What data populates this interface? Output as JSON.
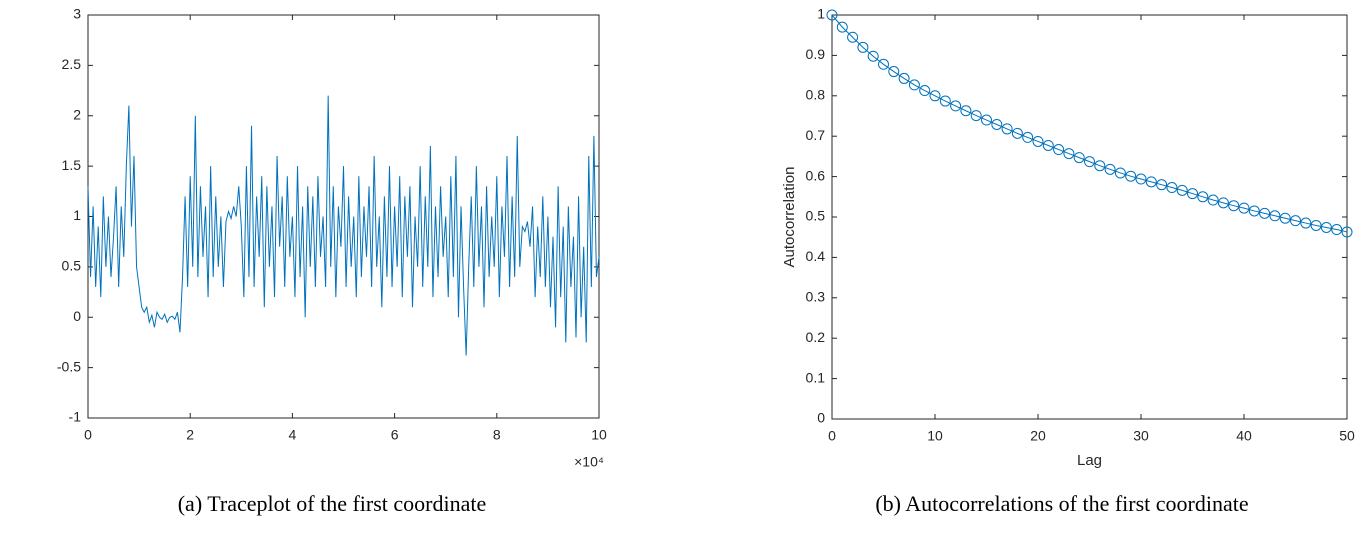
{
  "chart_data": [
    {
      "type": "line",
      "color": "#0072bd",
      "x": [
        0,
        500,
        1000,
        1500,
        2000,
        2500,
        3000,
        3500,
        4000,
        4500,
        5000,
        5500,
        6000,
        6500,
        7000,
        7500,
        8000,
        8500,
        9000,
        9500,
        10000,
        10500,
        11000,
        11500,
        12000,
        12500,
        13000,
        13500,
        14000,
        14500,
        15000,
        15500,
        16000,
        16500,
        17000,
        17500,
        18000,
        18500,
        19000,
        19500,
        20000,
        20500,
        21000,
        21500,
        22000,
        22500,
        23000,
        23500,
        24000,
        24500,
        25000,
        25500,
        26000,
        26500,
        27000,
        27500,
        28000,
        28500,
        29000,
        29500,
        30000,
        30500,
        31000,
        31500,
        32000,
        32500,
        33000,
        33500,
        34000,
        34500,
        35000,
        35500,
        36000,
        36500,
        37000,
        37500,
        38000,
        38500,
        39000,
        39500,
        40000,
        40500,
        41000,
        41500,
        42000,
        42500,
        43000,
        43500,
        44000,
        44500,
        45000,
        45500,
        46000,
        46500,
        47000,
        47500,
        48000,
        48500,
        49000,
        49500,
        50000,
        50500,
        51000,
        51500,
        52000,
        52500,
        53000,
        53500,
        54000,
        54500,
        55000,
        55500,
        56000,
        56500,
        57000,
        57500,
        58000,
        58500,
        59000,
        59500,
        60000,
        60500,
        61000,
        61500,
        62000,
        62500,
        63000,
        63500,
        64000,
        64500,
        65000,
        65500,
        66000,
        66500,
        67000,
        67500,
        68000,
        68500,
        69000,
        69500,
        70000,
        70500,
        71000,
        71500,
        72000,
        72500,
        73000,
        73500,
        74000,
        74500,
        75000,
        75500,
        76000,
        76500,
        77000,
        77500,
        78000,
        78500,
        79000,
        79500,
        80000,
        80500,
        81000,
        81500,
        82000,
        82500,
        83000,
        83500,
        84000,
        84500,
        85000,
        85500,
        86000,
        86500,
        87000,
        87500,
        88000,
        88500,
        89000,
        89500,
        90000,
        90500,
        91000,
        91500,
        92000,
        92500,
        93000,
        93500,
        94000,
        94500,
        95000,
        95500,
        96000,
        96500,
        97000,
        97500,
        98000,
        98500,
        99000,
        99500,
        100000
      ],
      "values": [
        1.3,
        0.4,
        1.1,
        0.3,
        0.9,
        0.2,
        1.2,
        0.5,
        1.0,
        0.4,
        0.8,
        1.3,
        0.3,
        1.1,
        0.6,
        1.5,
        2.1,
        0.9,
        1.6,
        0.5,
        0.3,
        0.1,
        0.05,
        0.1,
        -0.05,
        0.02,
        -0.1,
        0.05,
        0.0,
        -0.02,
        0.03,
        -0.05,
        0.0,
        0.01,
        -0.02,
        0.05,
        -0.15,
        0.4,
        1.2,
        0.3,
        1.4,
        0.5,
        2.0,
        0.4,
        1.3,
        0.6,
        1.1,
        0.2,
        1.5,
        0.4,
        1.2,
        0.5,
        1.0,
        0.3,
        0.95,
        1.05,
        0.98,
        1.1,
        1.0,
        1.3,
        0.9,
        0.2,
        1.5,
        0.4,
        1.9,
        0.3,
        1.2,
        0.6,
        1.4,
        0.1,
        1.3,
        0.5,
        1.1,
        0.2,
        1.6,
        0.7,
        1.2,
        0.3,
        1.4,
        0.6,
        1.0,
        0.2,
        1.5,
        0.4,
        1.1,
        0.0,
        1.3,
        0.5,
        1.2,
        0.3,
        1.4,
        0.6,
        1.0,
        0.3,
        2.2,
        0.5,
        1.3,
        0.2,
        1.1,
        0.7,
        1.5,
        0.3,
        1.2,
        0.5,
        1.0,
        0.2,
        1.4,
        0.4,
        1.1,
        0.6,
        1.3,
        0.3,
        1.6,
        0.5,
        1.0,
        0.1,
        1.2,
        0.4,
        1.5,
        0.3,
        1.1,
        0.5,
        1.4,
        0.2,
        1.2,
        0.6,
        1.3,
        0.1,
        1.0,
        0.5,
        1.5,
        0.3,
        1.2,
        0.5,
        1.7,
        0.2,
        1.1,
        0.4,
        1.3,
        0.6,
        1.0,
        0.2,
        1.4,
        0.4,
        1.6,
        0.0,
        1.1,
        0.3,
        -0.38,
        0.5,
        1.2,
        0.3,
        1.5,
        0.5,
        1.1,
        0.1,
        1.3,
        0.4,
        1.0,
        0.5,
        1.4,
        0.2,
        1.1,
        0.6,
        1.6,
        0.3,
        1.2,
        0.4,
        1.8,
        0.5,
        0.9,
        0.85,
        0.95,
        0.7,
        1.1,
        0.2,
        0.9,
        0.4,
        1.2,
        0.3,
        1.0,
        0.1,
        0.8,
        -0.1,
        1.3,
        0.2,
        0.9,
        -0.25,
        1.1,
        0.3,
        0.8,
        -0.2,
        1.2,
        0.0,
        0.7,
        -0.25,
        1.6,
        0.3,
        1.8,
        0.4,
        0.6
      ],
      "xlim": [
        0,
        100000
      ],
      "ylim": [
        -1,
        3
      ],
      "xticks": [
        0,
        {
          "value": 20000,
          "label": "2"
        },
        {
          "value": 40000,
          "label": "4"
        },
        {
          "value": 60000,
          "label": "6"
        },
        {
          "value": 80000,
          "label": "8"
        },
        {
          "value": 100000,
          "label": "10"
        }
      ],
      "yticks": [
        -1,
        -0.5,
        0,
        0.5,
        1,
        1.5,
        2,
        2.5,
        3
      ],
      "x_multiplier_label": "×10⁴",
      "caption": "(a) Traceplot of the first coordinate"
    },
    {
      "type": "line",
      "color": "#0072bd",
      "marker": "circle",
      "x": [
        0,
        1,
        2,
        3,
        4,
        5,
        6,
        7,
        8,
        9,
        10,
        11,
        12,
        13,
        14,
        15,
        16,
        17,
        18,
        19,
        20,
        21,
        22,
        23,
        24,
        25,
        26,
        27,
        28,
        29,
        30,
        31,
        32,
        33,
        34,
        35,
        36,
        37,
        38,
        39,
        40,
        41,
        42,
        43,
        44,
        45,
        46,
        47,
        48,
        49,
        50
      ],
      "values": [
        1,
        0.97,
        0.945,
        0.92,
        0.898,
        0.878,
        0.86,
        0.843,
        0.827,
        0.813,
        0.8,
        0.787,
        0.775,
        0.763,
        0.751,
        0.74,
        0.729,
        0.718,
        0.707,
        0.697,
        0.687,
        0.677,
        0.667,
        0.657,
        0.647,
        0.637,
        0.627,
        0.618,
        0.609,
        0.601,
        0.594,
        0.587,
        0.58,
        0.573,
        0.566,
        0.558,
        0.55,
        0.542,
        0.535,
        0.528,
        0.522,
        0.515,
        0.509,
        0.503,
        0.497,
        0.491,
        0.485,
        0.479,
        0.474,
        0.469,
        0.463
      ],
      "xlim": [
        0,
        50
      ],
      "ylim": [
        0,
        1
      ],
      "xticks": [
        0,
        10,
        20,
        30,
        40,
        50
      ],
      "yticks": [
        0,
        0.1,
        0.2,
        0.3,
        0.4,
        0.5,
        0.6,
        0.7,
        0.8,
        0.9,
        1
      ],
      "xlabel": "Lag",
      "ylabel": "Autocorrelation",
      "caption": "(b) Autocorrelations of the first coordinate"
    }
  ]
}
